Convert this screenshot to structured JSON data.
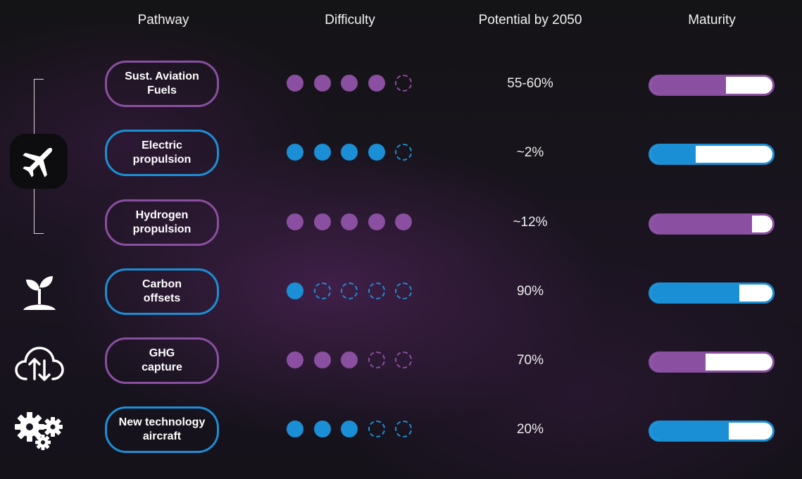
{
  "headers": {
    "pathway": "Pathway",
    "difficulty": "Difficulty",
    "potential": "Potential by 2050",
    "maturity": "Maturity"
  },
  "colors": {
    "purple": "#8a4fa0",
    "blue": "#1a8fd6",
    "white": "#ffffff"
  },
  "group_icons": [
    "airplane-icon",
    "plant-sprout-icon",
    "cloud-upload-download-icon",
    "gears-icon"
  ],
  "rows": [
    {
      "pathway": "Sust. Aviation\nFuels",
      "color": "purple",
      "difficulty_filled": 4,
      "difficulty_total": 5,
      "potential": "55-60%",
      "maturity": 0.62
    },
    {
      "pathway": "Electric\npropulsion",
      "color": "blue",
      "difficulty_filled": 4,
      "difficulty_total": 5,
      "potential": "~2%",
      "maturity": 0.37
    },
    {
      "pathway": "Hydrogen\npropulsion",
      "color": "purple",
      "difficulty_filled": 5,
      "difficulty_total": 5,
      "potential": "~12%",
      "maturity": 0.83
    },
    {
      "pathway": "Carbon\noffsets",
      "color": "blue",
      "difficulty_filled": 1,
      "difficulty_total": 5,
      "potential": "90%",
      "maturity": 0.73
    },
    {
      "pathway": "GHG\ncapture",
      "color": "purple",
      "difficulty_filled": 3,
      "difficulty_total": 5,
      "potential": "70%",
      "maturity": 0.45
    },
    {
      "pathway": "New technology\naircraft",
      "color": "blue",
      "difficulty_filled": 3,
      "difficulty_total": 5,
      "potential": "20%",
      "maturity": 0.64
    }
  ]
}
